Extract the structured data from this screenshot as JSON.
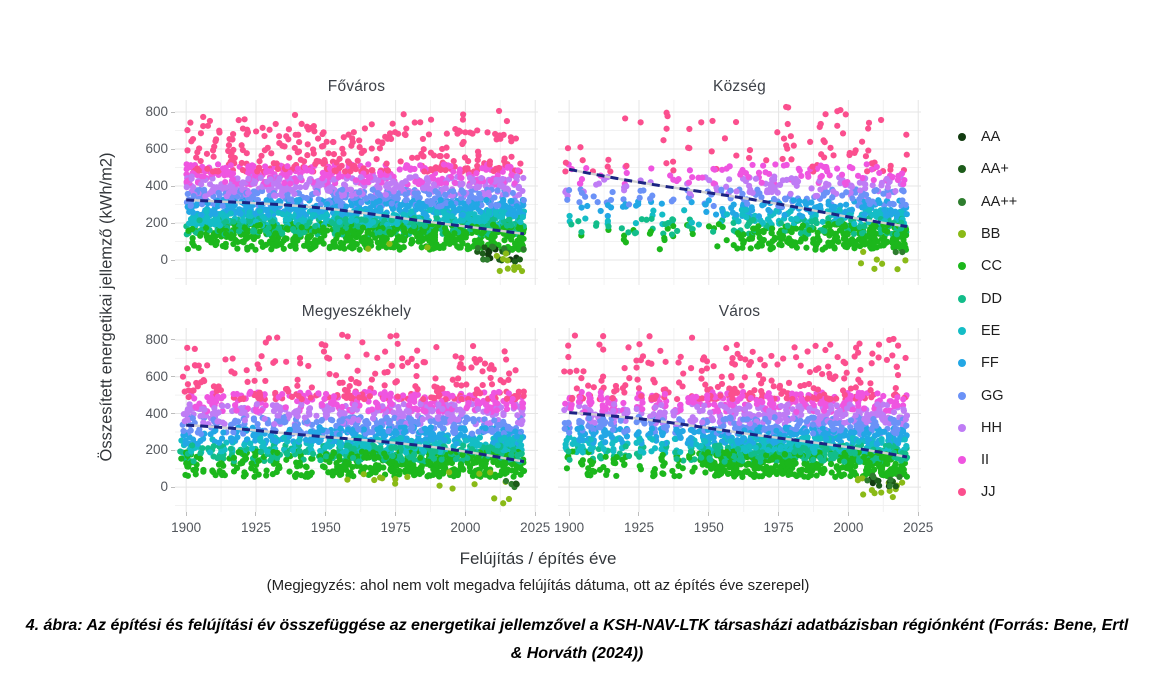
{
  "figure": {
    "ylabel": "Összesített energetikai jellemző (kWh/m2)",
    "xlabel": "Felújítás / építés éve",
    "note": "(Megjegyzés: ahol nem volt megadva felújítás dátuma, ott az építés éve szerepel)",
    "caption": "4. ábra: Az építési és felújítási év összefüggése az energetikai jellemzővel a KSH-NAV-LTK társasházi adatbázisban régiónként (Forrás: Bene, Ertl & Horváth (2024))"
  },
  "chart_data": {
    "type": "scatter",
    "title": "",
    "xlabel": "Felújítás / építés éve",
    "ylabel": "Összesített energetikai jellemző (kWh/m2)",
    "grid": true,
    "legend_position": "right",
    "point_radius": 3.1,
    "x": {
      "domain": [
        1896,
        2026
      ],
      "ticks": [
        1900,
        1925,
        1950,
        1975,
        2000,
        2025
      ],
      "minor_ticks": [
        1912.5,
        1937.5,
        1962.5,
        1987.5,
        2012.5
      ]
    },
    "y": {
      "domain": [
        -135,
        865
      ],
      "ticks": [
        800,
        600,
        400,
        200,
        0
      ],
      "minor_ticks": [
        -100,
        100,
        300,
        500,
        700
      ]
    },
    "grid_major_color": "#e5e5e5",
    "grid_minor_color": "#f2f2f2",
    "trend_style": {
      "color": "#1b2383",
      "underlay_color": "#cfcfcf",
      "dash": [
        8,
        6
      ],
      "width": 3
    },
    "categories": [
      {
        "key": "AA",
        "color": "#123b10",
        "band": null
      },
      {
        "key": "AA+",
        "color": "#1d5c1a",
        "band": null
      },
      {
        "key": "AA++",
        "color": "#2e7d2e",
        "band": null
      },
      {
        "key": "BB",
        "color": "#8aba17",
        "band": null
      },
      {
        "key": "CC",
        "color": "#1cb71c",
        "band": [
          55,
          195
        ],
        "weight": 0.2,
        "bias": 0.9
      },
      {
        "key": "DD",
        "color": "#12bd8a",
        "band": [
          138,
          228
        ],
        "weight": 0.12,
        "bias": 0.5
      },
      {
        "key": "EE",
        "color": "#14bdc6",
        "band": [
          186,
          272
        ],
        "weight": 0.12,
        "bias": 0.25
      },
      {
        "key": "FF",
        "color": "#22a7e5",
        "band": [
          235,
          325
        ],
        "weight": 0.12,
        "bias": 0.1
      },
      {
        "key": "GG",
        "color": "#6b92f7",
        "band": [
          288,
          382
        ],
        "weight": 0.11,
        "bias": 0
      },
      {
        "key": "HH",
        "color": "#bf7cf5",
        "band": [
          342,
          452
        ],
        "weight": 0.12,
        "bias": -0.15
      },
      {
        "key": "II",
        "color": "#ef55e0",
        "band": [
          408,
          518
        ],
        "weight": 0.1,
        "bias": -0.3
      },
      {
        "key": "JJ",
        "color": "#fb4f8e",
        "band": [
          478,
          712
        ],
        "weight": 0.11,
        "bias": -0.45,
        "pow": 1.9,
        "tail": [
          650,
          830
        ],
        "tail_p": 0.16
      }
    ],
    "facets": [
      {
        "name": "Főváros",
        "row": 0,
        "col": 0,
        "seed": 11,
        "n": 2600,
        "bias_scale": 1.0,
        "x_model": {
          "pre_frac": 0,
          "strips": null,
          "post_exp": 1,
          "x_min": 1900,
          "x_max": 2021
        },
        "trend": [
          330,
          258,
          138
        ],
        "clusters": [
          {
            "key": "AA",
            "n": 8,
            "x": [
              2006,
              2020
            ],
            "y": [
              -5,
              60
            ]
          },
          {
            "key": "AA+",
            "n": 8,
            "x": [
              2004,
              2021
            ],
            "y": [
              -10,
              70
            ]
          },
          {
            "key": "AA++",
            "n": 9,
            "x": [
              2002,
              2021
            ],
            "y": [
              0,
              85
            ]
          },
          {
            "key": "BB",
            "n": 10,
            "x": [
              2006,
              2021
            ],
            "y": [
              -65,
              55
            ]
          },
          {
            "key": "BB",
            "n": 3,
            "x": [
              1953,
              1996
            ],
            "y": [
              45,
              90
            ]
          }
        ]
      },
      {
        "name": "Község",
        "row": 0,
        "col": 1,
        "seed": 22,
        "n": 980,
        "bias_scale": 1.9,
        "x_model": {
          "pre_frac": 0.15,
          "strips": [
            1900,
            1905,
            1910,
            1914,
            1920,
            1925,
            1929,
            1934,
            1938,
            1943,
            1948
          ],
          "post_exp": 0.7,
          "x_min": 1900,
          "x_max": 2021
        },
        "trend": [
          490,
          335,
          185
        ],
        "clusters": [
          {
            "key": "BB",
            "n": 7,
            "x": [
              1996,
              2021
            ],
            "y": [
              -55,
              55
            ]
          },
          {
            "key": "AA++",
            "n": 2,
            "x": [
              2014,
              2020
            ],
            "y": [
              10,
              45
            ]
          }
        ]
      },
      {
        "name": "Megyeszékhely",
        "row": 1,
        "col": 0,
        "seed": 33,
        "n": 2100,
        "bias_scale": 1.0,
        "x_model": {
          "pre_frac": 0.3,
          "strips": [
            1900,
            1903,
            1906,
            1910,
            1913,
            1917,
            1921,
            1925,
            1928,
            1932,
            1936,
            1940,
            1944,
            1948
          ],
          "post_exp": 1,
          "x_min": 1900,
          "x_max": 2021
        },
        "trend": [
          332,
          262,
          142
        ],
        "clusters": [
          {
            "key": "BB",
            "n": 15,
            "x": [
              1955,
              2021
            ],
            "y": [
              -15,
              85
            ]
          },
          {
            "key": "BB",
            "n": 3,
            "x": [
              2000,
              2021
            ],
            "y": [
              -95,
              -60
            ]
          },
          {
            "key": "AA++",
            "n": 3,
            "x": [
              2012,
              2020
            ],
            "y": [
              -5,
              40
            ]
          },
          {
            "key": "AA+",
            "n": 2,
            "x": [
              2013,
              2019
            ],
            "y": [
              -10,
              30
            ]
          }
        ]
      },
      {
        "name": "Város",
        "row": 1,
        "col": 1,
        "seed": 44,
        "n": 2100,
        "bias_scale": 1.25,
        "x_model": {
          "pre_frac": 0.26,
          "strips": [
            1900,
            1904,
            1908,
            1912,
            1916,
            1920,
            1925,
            1930,
            1934,
            1939,
            1944,
            1948
          ],
          "post_exp": 1,
          "x_min": 1900,
          "x_max": 2021
        },
        "trend": [
          405,
          302,
          160
        ],
        "clusters": [
          {
            "key": "BB",
            "n": 14,
            "x": [
              2002,
              2021
            ],
            "y": [
              -75,
              60
            ]
          },
          {
            "key": "AA",
            "n": 5,
            "x": [
              2006,
              2016
            ],
            "y": [
              5,
              55
            ]
          },
          {
            "key": "AA+",
            "n": 5,
            "x": [
              2009,
              2020
            ],
            "y": [
              0,
              50
            ]
          },
          {
            "key": "AA++",
            "n": 6,
            "x": [
              2006,
              2021
            ],
            "y": [
              0,
              65
            ]
          }
        ]
      }
    ]
  },
  "legend": {
    "items": [
      "AA",
      "AA+",
      "AA++",
      "BB",
      "CC",
      "DD",
      "EE",
      "FF",
      "GG",
      "HH",
      "II",
      "JJ"
    ]
  }
}
